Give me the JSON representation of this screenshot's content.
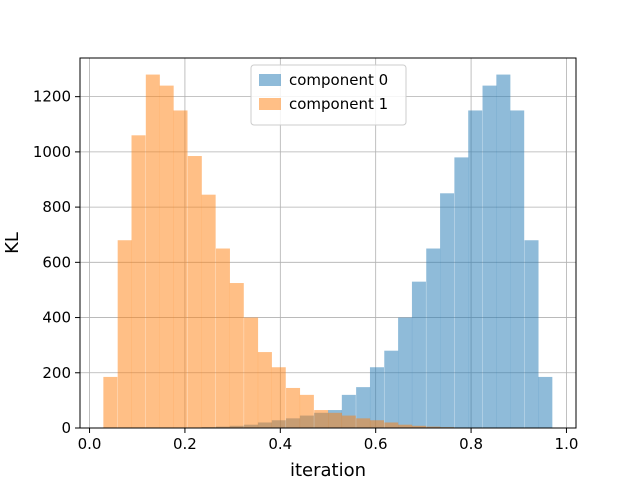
{
  "chart_data": {
    "type": "bar",
    "subtype": "overlapping histogram",
    "xlabel": "iteration",
    "ylabel": "KL",
    "xlim": [
      -0.02,
      1.02
    ],
    "ylim": [
      0,
      1340
    ],
    "xticks": [
      "0.0",
      "0.2",
      "0.4",
      "0.6",
      "0.8",
      "1.0"
    ],
    "yticks": [
      "0",
      "200",
      "400",
      "600",
      "800",
      "1000",
      "1200"
    ],
    "grid": true,
    "legend_position": "upper center",
    "bin_width": 0.0294,
    "series": [
      {
        "name": "component 0",
        "color": "#1f77b4",
        "alpha": 0.5,
        "bin_starts": [
          0.206,
          0.235,
          0.265,
          0.294,
          0.324,
          0.353,
          0.382,
          0.412,
          0.441,
          0.471,
          0.5,
          0.529,
          0.559,
          0.588,
          0.618,
          0.647,
          0.676,
          0.706,
          0.735,
          0.765,
          0.794,
          0.824,
          0.853,
          0.882,
          0.912,
          0.941
        ],
        "counts": [
          1,
          3,
          5,
          8,
          12,
          20,
          28,
          35,
          45,
          55,
          65,
          120,
          148,
          220,
          280,
          400,
          530,
          650,
          850,
          980,
          1150,
          1240,
          1280,
          1150,
          680,
          185
        ]
      },
      {
        "name": "component 1",
        "color": "#ff7f0e",
        "alpha": 0.5,
        "bin_starts": [
          0.029,
          0.059,
          0.088,
          0.118,
          0.147,
          0.176,
          0.206,
          0.235,
          0.265,
          0.294,
          0.324,
          0.353,
          0.382,
          0.412,
          0.441,
          0.471,
          0.5,
          0.529,
          0.559,
          0.588,
          0.618,
          0.647,
          0.676,
          0.706,
          0.735,
          0.765
        ],
        "counts": [
          185,
          680,
          1060,
          1280,
          1240,
          1150,
          985,
          845,
          650,
          525,
          400,
          275,
          220,
          145,
          120,
          65,
          55,
          45,
          35,
          28,
          20,
          12,
          8,
          5,
          3,
          1
        ]
      }
    ]
  }
}
